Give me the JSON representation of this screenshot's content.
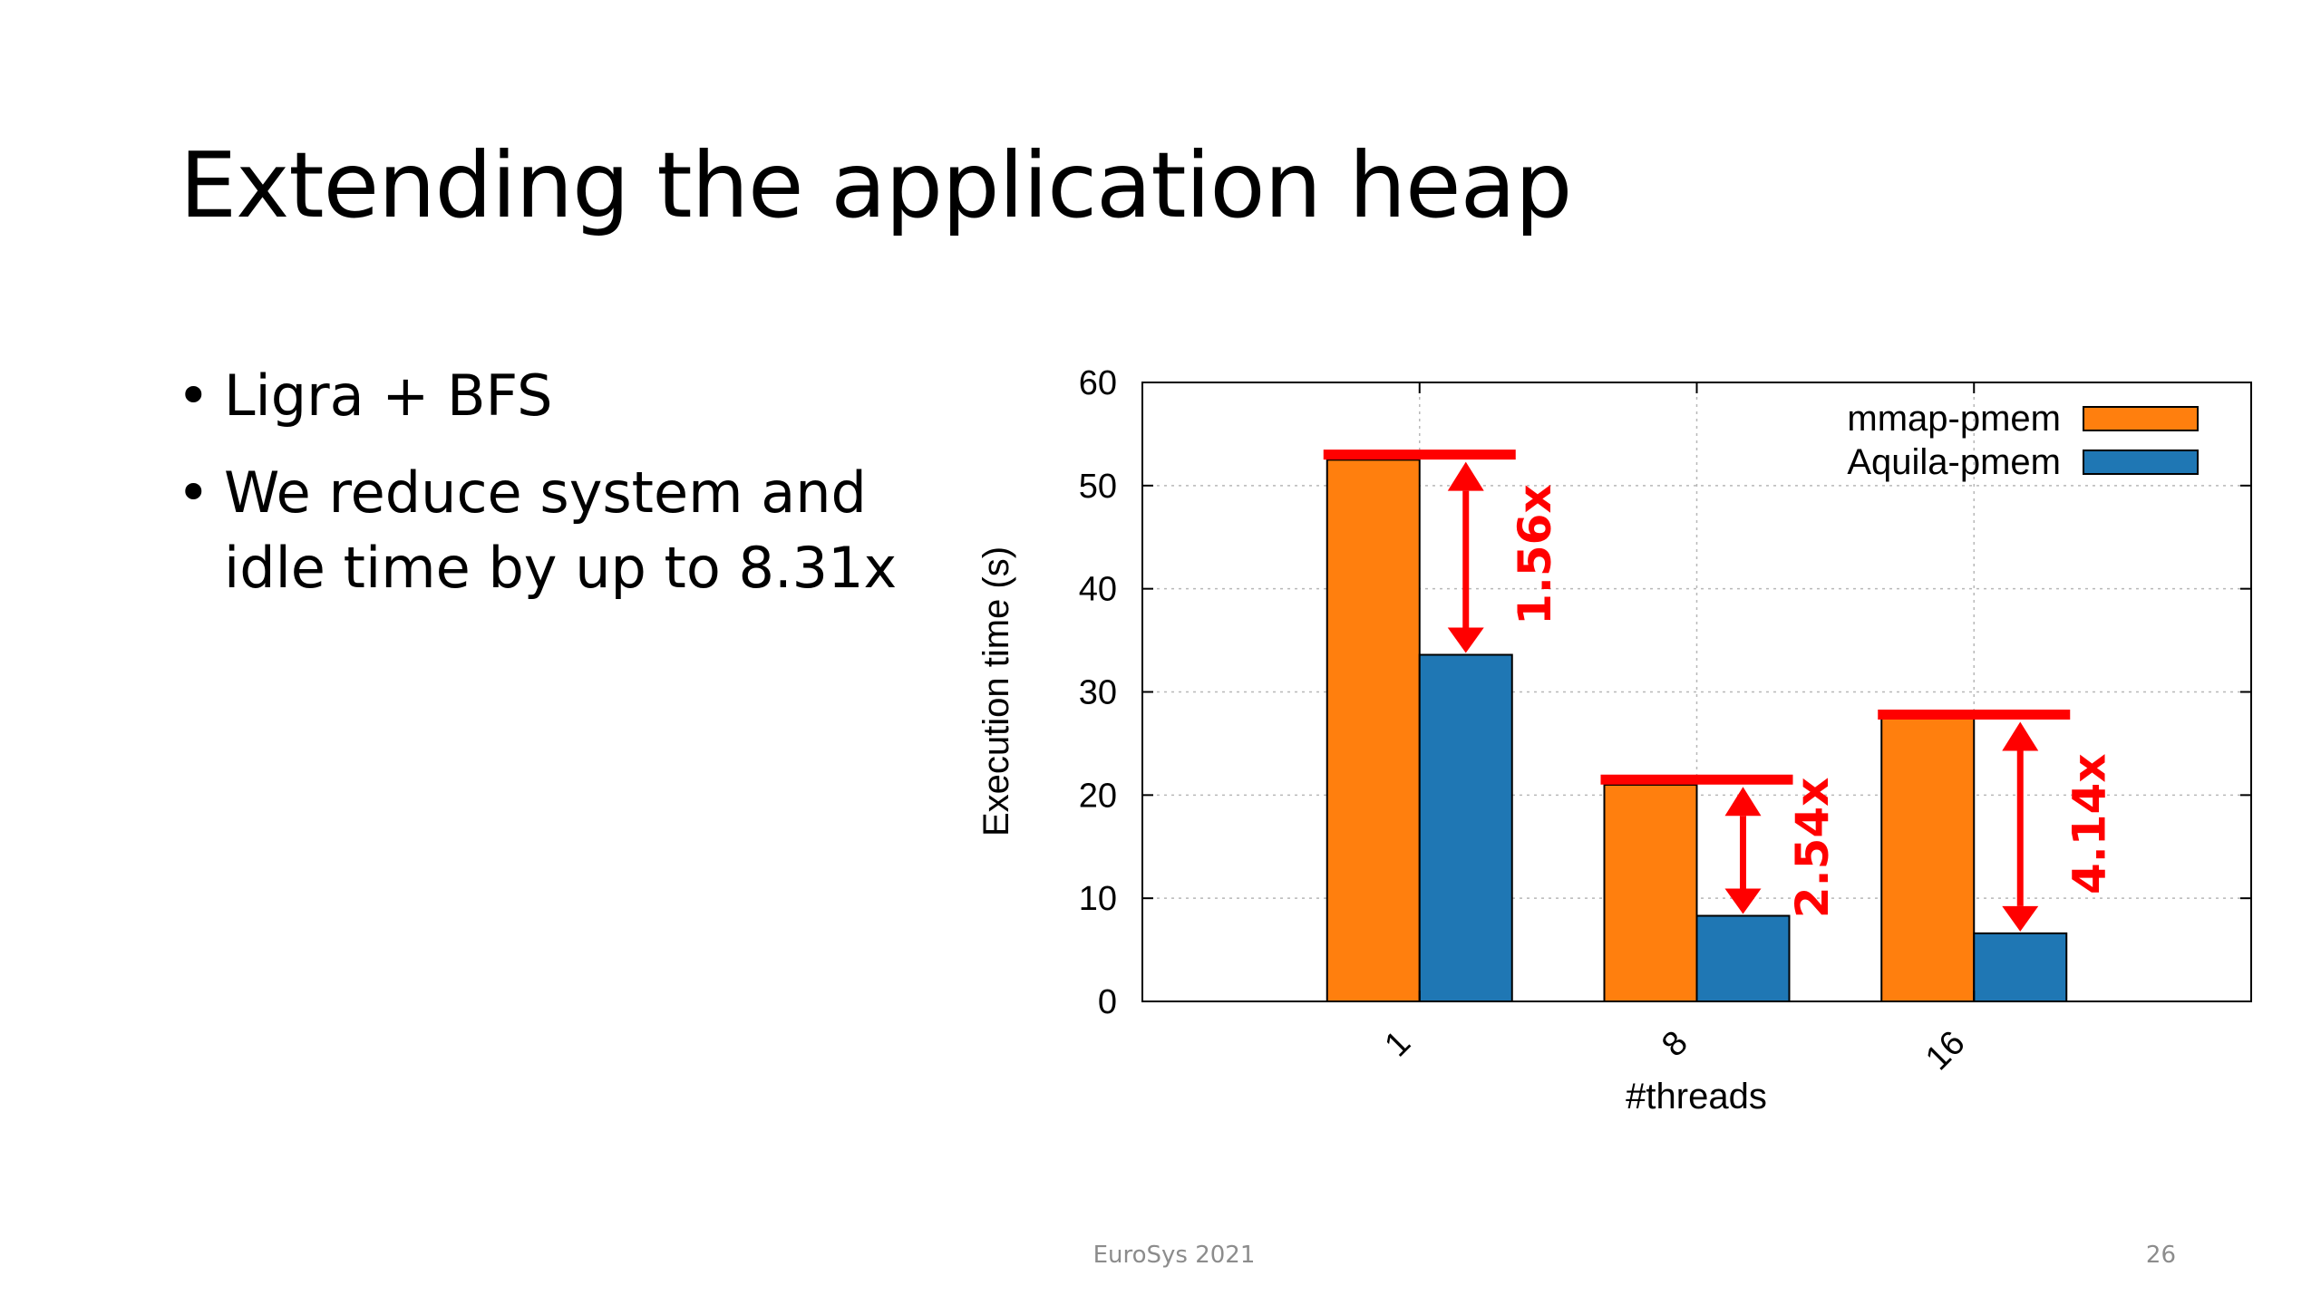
{
  "slide": {
    "title": "Extending the application heap",
    "bullets": [
      "Ligra + BFS",
      "We reduce system and idle time by up to 8.31x"
    ],
    "footer": "EuroSys 2021",
    "page_number": "26"
  },
  "chart_data": {
    "type": "bar",
    "xlabel": "#threads",
    "ylabel": "Execution time (s)",
    "categories": [
      "1",
      "8",
      "16"
    ],
    "ylim": [
      0,
      60
    ],
    "yticks": [
      "0",
      "10",
      "20",
      "30",
      "40",
      "50",
      "60"
    ],
    "grid": true,
    "legend_position": "top-right",
    "series": [
      {
        "name": "mmap-pmem",
        "color": "#ff7f0e",
        "values": [
          52.5,
          21,
          27.5
        ]
      },
      {
        "name": "Aquila-pmem",
        "color": "#1f77b4",
        "values": [
          33.6,
          8.3,
          6.6
        ]
      }
    ],
    "annotations": [
      {
        "category": "1",
        "label": "1.56x",
        "top": 53,
        "bottom": 33.6
      },
      {
        "category": "8",
        "label": "2.54x",
        "top": 21.5,
        "bottom": 8.3
      },
      {
        "category": "16",
        "label": "4.14x",
        "top": 27.8,
        "bottom": 6.6
      }
    ],
    "annotation_color": "#ff0000"
  }
}
